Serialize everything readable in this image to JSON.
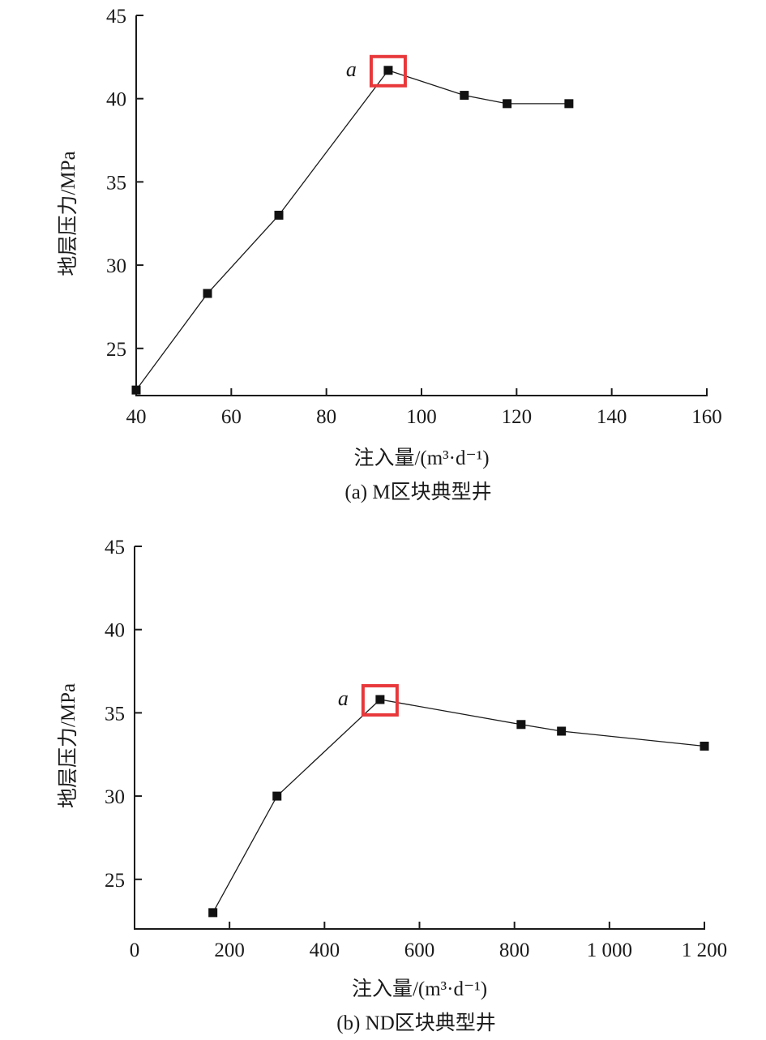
{
  "chart_data": [
    {
      "type": "line",
      "title": "(a) M区块典型井",
      "xlabel": "注入量/(m³·d⁻¹)",
      "ylabel": "地层压力/MPa",
      "xlim": [
        40,
        160
      ],
      "ylim": [
        22.2,
        45
      ],
      "xticks": [
        40,
        60,
        80,
        100,
        120,
        140,
        160
      ],
      "xtick_labels": [
        "40",
        "60",
        "80",
        "100",
        "120",
        "140",
        "160"
      ],
      "yticks": [
        25,
        30,
        35,
        40,
        45
      ],
      "ytick_labels": [
        "25",
        "30",
        "35",
        "40",
        "45"
      ],
      "x": [
        40,
        55,
        70,
        93,
        109,
        118,
        131
      ],
      "y": [
        22.5,
        28.3,
        33.0,
        41.7,
        40.2,
        39.7,
        39.7
      ],
      "annotation": {
        "label": "a",
        "x": 93,
        "y": 41.7,
        "highlight_color": "#e8383b"
      },
      "grid": false
    },
    {
      "type": "line",
      "title": "(b) ND区块典型井",
      "xlabel": "注入量/(m³·d⁻¹)",
      "ylabel": "地层压力/MPa",
      "xlim": [
        0,
        1200
      ],
      "ylim": [
        22.0,
        45
      ],
      "xticks": [
        0,
        200,
        400,
        600,
        800,
        1000,
        1200
      ],
      "xtick_labels": [
        "0",
        "200",
        "400",
        "600",
        "800",
        "1 000",
        "1 200"
      ],
      "yticks": [
        25,
        30,
        35,
        40,
        45
      ],
      "ytick_labels": [
        "25",
        "30",
        "35",
        "40",
        "45"
      ],
      "x": [
        165,
        300,
        517,
        814,
        899,
        1200
      ],
      "y": [
        23.0,
        30.0,
        35.8,
        34.3,
        33.9,
        33.0
      ],
      "annotation": {
        "label": "a",
        "x": 517,
        "y": 35.8,
        "highlight_color": "#e8383b"
      },
      "grid": false
    }
  ]
}
